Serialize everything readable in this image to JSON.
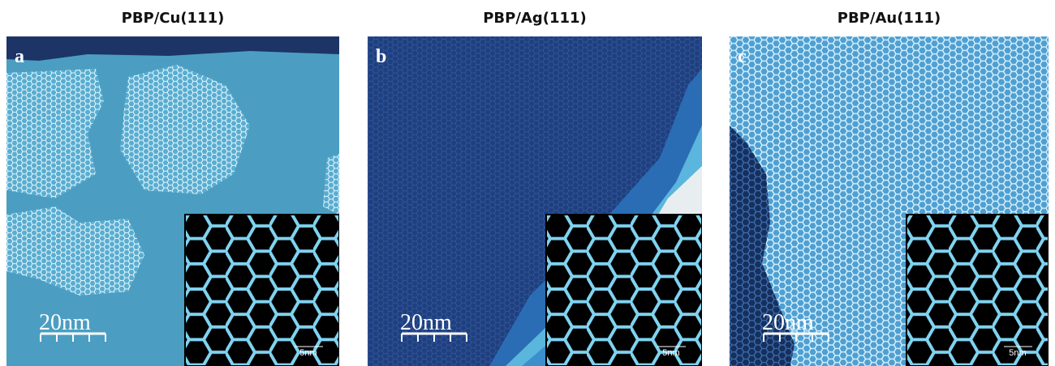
{
  "panels": [
    {
      "title": "PBP/Cu(111)",
      "letter": "a",
      "scale_label": "20nm",
      "inset_scale_label": "5nm"
    },
    {
      "title": "PBP/Ag(111)",
      "letter": "b",
      "scale_label": "20nm",
      "inset_scale_label": "5nm"
    },
    {
      "title": "PBP/Au(111)",
      "letter": "c",
      "scale_label": "20nm",
      "inset_scale_label": "5nm"
    }
  ]
}
